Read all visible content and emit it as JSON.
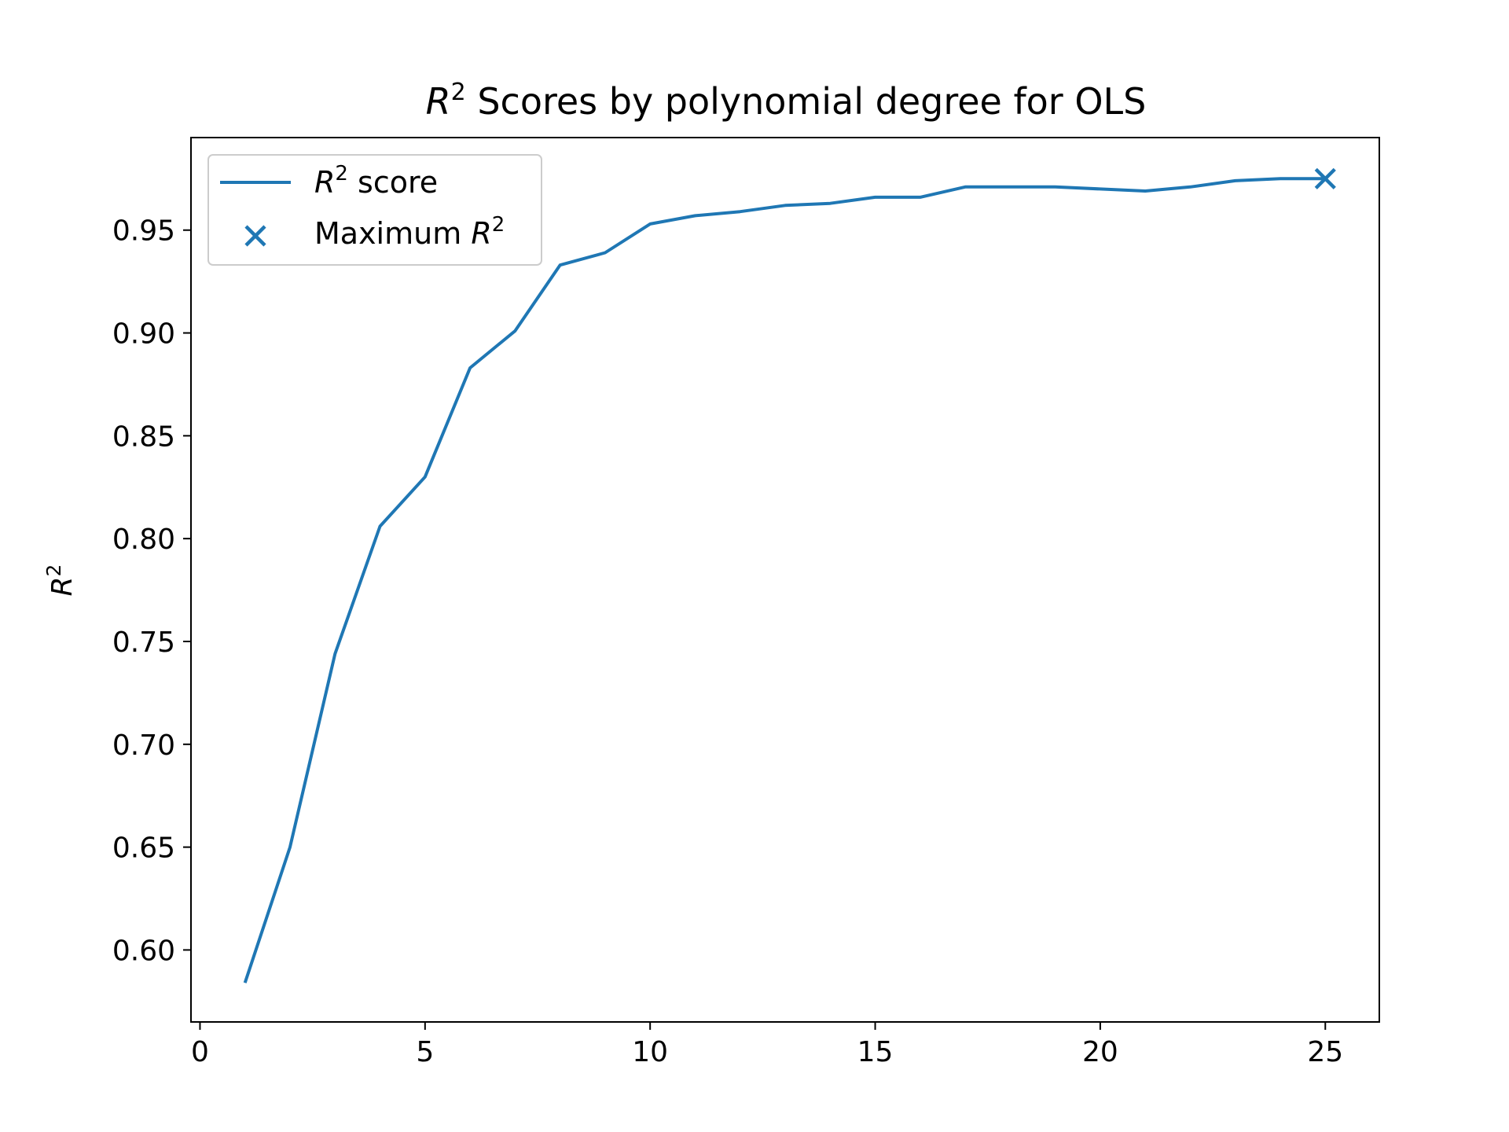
{
  "chart_data": {
    "type": "line",
    "title": {
      "var": "R",
      "sup": "2",
      "text": " Scores by polynomial degree for OLS"
    },
    "xlabel": "",
    "ylabel": {
      "var": "R",
      "sup": "2"
    },
    "xlim": [
      -0.2,
      26.2
    ],
    "ylim": [
      0.565,
      0.995
    ],
    "xticks": [
      0,
      5,
      10,
      15,
      20,
      25
    ],
    "xtick_labels": [
      "0",
      "5",
      "10",
      "15",
      "20",
      "25"
    ],
    "yticks": [
      0.6,
      0.65,
      0.7,
      0.75,
      0.8,
      0.85,
      0.9,
      0.95
    ],
    "ytick_labels": [
      "0.60",
      "0.65",
      "0.70",
      "0.75",
      "0.80",
      "0.85",
      "0.90",
      "0.95"
    ],
    "grid": false,
    "legend_position": "upper-left",
    "series": [
      {
        "name": "R² score",
        "legend_var": "R",
        "legend_sup": "2",
        "legend_text": " score",
        "color": "#1f77b4",
        "x": [
          1,
          2,
          3,
          4,
          5,
          6,
          7,
          8,
          9,
          10,
          11,
          12,
          13,
          14,
          15,
          16,
          17,
          18,
          19,
          20,
          21,
          22,
          23,
          24,
          25
        ],
        "values": [
          0.584,
          0.65,
          0.744,
          0.806,
          0.83,
          0.883,
          0.901,
          0.933,
          0.939,
          0.953,
          0.957,
          0.959,
          0.962,
          0.963,
          0.966,
          0.966,
          0.971,
          0.971,
          0.971,
          0.97,
          0.969,
          0.971,
          0.974,
          0.975,
          0.975
        ]
      }
    ],
    "maximum_marker": {
      "legend_text": "Maximum ",
      "legend_var": "R",
      "legend_sup": "2",
      "x": 25,
      "y": 0.975,
      "color": "#1f77b4",
      "marker": "x"
    }
  }
}
